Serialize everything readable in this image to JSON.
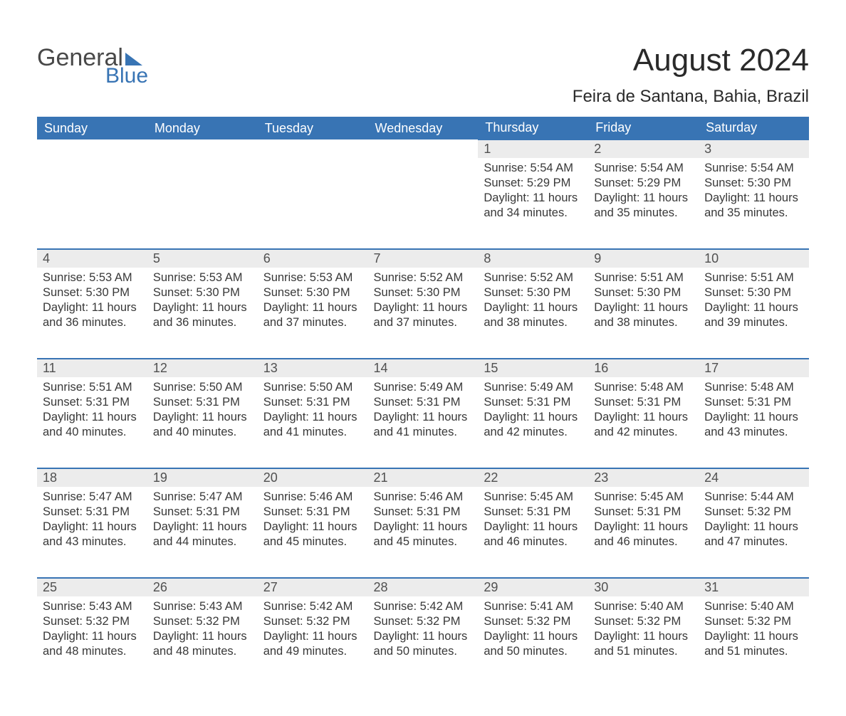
{
  "logo": {
    "word1": "General",
    "word2": "Blue"
  },
  "title": "August 2024",
  "location": "Feira de Santana, Bahia, Brazil",
  "colors": {
    "brand_blue": "#3874b4",
    "header_text": "#ffffff",
    "daynum_bg": "#ececec",
    "body_text": "#383838",
    "page_bg": "#ffffff"
  },
  "typography": {
    "title_fontsize": 44,
    "location_fontsize": 24,
    "header_fontsize": 18,
    "daynum_fontsize": 18,
    "body_fontsize": 16.5
  },
  "weekdays": [
    "Sunday",
    "Monday",
    "Tuesday",
    "Wednesday",
    "Thursday",
    "Friday",
    "Saturday"
  ],
  "labels": {
    "sunrise": "Sunrise:",
    "sunset": "Sunset:",
    "daylight": "Daylight:"
  },
  "grid": {
    "columns": 7,
    "rows": 5,
    "first_day_column": 4
  },
  "weeks": [
    [
      null,
      null,
      null,
      null,
      {
        "d": "1",
        "sunrise": "5:54 AM",
        "sunset": "5:29 PM",
        "daylight": "11 hours and 34 minutes."
      },
      {
        "d": "2",
        "sunrise": "5:54 AM",
        "sunset": "5:29 PM",
        "daylight": "11 hours and 35 minutes."
      },
      {
        "d": "3",
        "sunrise": "5:54 AM",
        "sunset": "5:30 PM",
        "daylight": "11 hours and 35 minutes."
      }
    ],
    [
      {
        "d": "4",
        "sunrise": "5:53 AM",
        "sunset": "5:30 PM",
        "daylight": "11 hours and 36 minutes."
      },
      {
        "d": "5",
        "sunrise": "5:53 AM",
        "sunset": "5:30 PM",
        "daylight": "11 hours and 36 minutes."
      },
      {
        "d": "6",
        "sunrise": "5:53 AM",
        "sunset": "5:30 PM",
        "daylight": "11 hours and 37 minutes."
      },
      {
        "d": "7",
        "sunrise": "5:52 AM",
        "sunset": "5:30 PM",
        "daylight": "11 hours and 37 minutes."
      },
      {
        "d": "8",
        "sunrise": "5:52 AM",
        "sunset": "5:30 PM",
        "daylight": "11 hours and 38 minutes."
      },
      {
        "d": "9",
        "sunrise": "5:51 AM",
        "sunset": "5:30 PM",
        "daylight": "11 hours and 38 minutes."
      },
      {
        "d": "10",
        "sunrise": "5:51 AM",
        "sunset": "5:30 PM",
        "daylight": "11 hours and 39 minutes."
      }
    ],
    [
      {
        "d": "11",
        "sunrise": "5:51 AM",
        "sunset": "5:31 PM",
        "daylight": "11 hours and 40 minutes."
      },
      {
        "d": "12",
        "sunrise": "5:50 AM",
        "sunset": "5:31 PM",
        "daylight": "11 hours and 40 minutes."
      },
      {
        "d": "13",
        "sunrise": "5:50 AM",
        "sunset": "5:31 PM",
        "daylight": "11 hours and 41 minutes."
      },
      {
        "d": "14",
        "sunrise": "5:49 AM",
        "sunset": "5:31 PM",
        "daylight": "11 hours and 41 minutes."
      },
      {
        "d": "15",
        "sunrise": "5:49 AM",
        "sunset": "5:31 PM",
        "daylight": "11 hours and 42 minutes."
      },
      {
        "d": "16",
        "sunrise": "5:48 AM",
        "sunset": "5:31 PM",
        "daylight": "11 hours and 42 minutes."
      },
      {
        "d": "17",
        "sunrise": "5:48 AM",
        "sunset": "5:31 PM",
        "daylight": "11 hours and 43 minutes."
      }
    ],
    [
      {
        "d": "18",
        "sunrise": "5:47 AM",
        "sunset": "5:31 PM",
        "daylight": "11 hours and 43 minutes."
      },
      {
        "d": "19",
        "sunrise": "5:47 AM",
        "sunset": "5:31 PM",
        "daylight": "11 hours and 44 minutes."
      },
      {
        "d": "20",
        "sunrise": "5:46 AM",
        "sunset": "5:31 PM",
        "daylight": "11 hours and 45 minutes."
      },
      {
        "d": "21",
        "sunrise": "5:46 AM",
        "sunset": "5:31 PM",
        "daylight": "11 hours and 45 minutes."
      },
      {
        "d": "22",
        "sunrise": "5:45 AM",
        "sunset": "5:31 PM",
        "daylight": "11 hours and 46 minutes."
      },
      {
        "d": "23",
        "sunrise": "5:45 AM",
        "sunset": "5:31 PM",
        "daylight": "11 hours and 46 minutes."
      },
      {
        "d": "24",
        "sunrise": "5:44 AM",
        "sunset": "5:32 PM",
        "daylight": "11 hours and 47 minutes."
      }
    ],
    [
      {
        "d": "25",
        "sunrise": "5:43 AM",
        "sunset": "5:32 PM",
        "daylight": "11 hours and 48 minutes."
      },
      {
        "d": "26",
        "sunrise": "5:43 AM",
        "sunset": "5:32 PM",
        "daylight": "11 hours and 48 minutes."
      },
      {
        "d": "27",
        "sunrise": "5:42 AM",
        "sunset": "5:32 PM",
        "daylight": "11 hours and 49 minutes."
      },
      {
        "d": "28",
        "sunrise": "5:42 AM",
        "sunset": "5:32 PM",
        "daylight": "11 hours and 50 minutes."
      },
      {
        "d": "29",
        "sunrise": "5:41 AM",
        "sunset": "5:32 PM",
        "daylight": "11 hours and 50 minutes."
      },
      {
        "d": "30",
        "sunrise": "5:40 AM",
        "sunset": "5:32 PM",
        "daylight": "11 hours and 51 minutes."
      },
      {
        "d": "31",
        "sunrise": "5:40 AM",
        "sunset": "5:32 PM",
        "daylight": "11 hours and 51 minutes."
      }
    ]
  ]
}
